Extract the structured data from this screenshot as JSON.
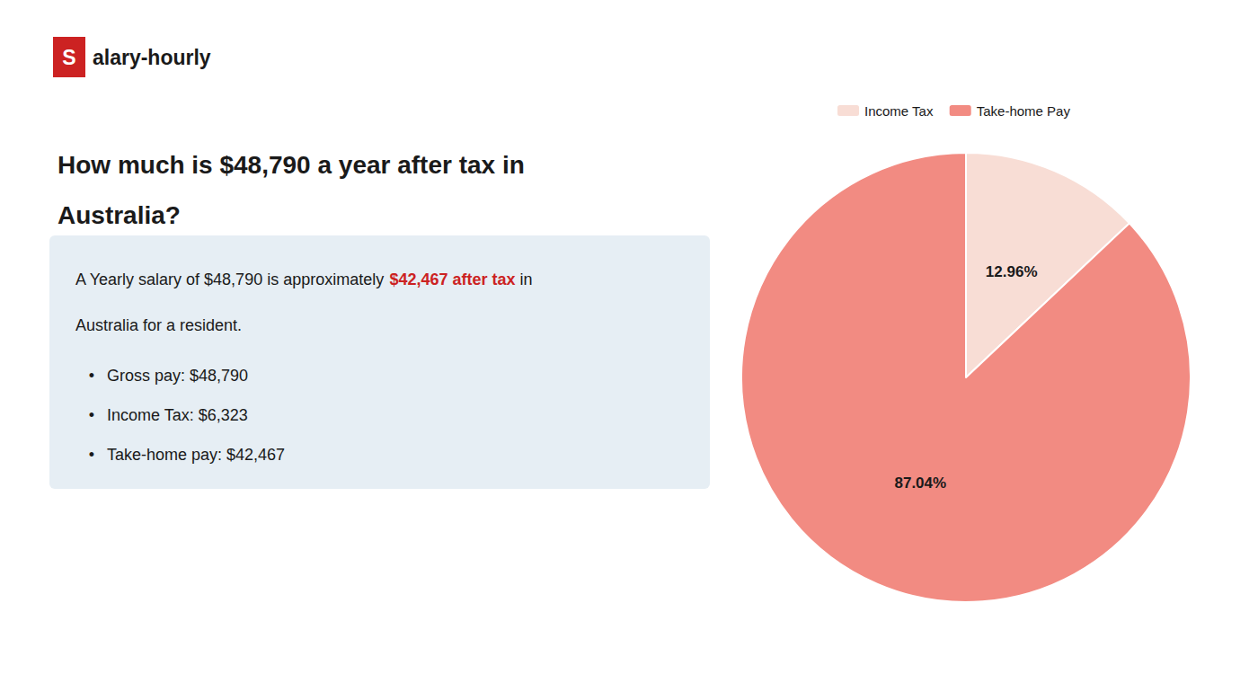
{
  "chart_data": {
    "type": "pie",
    "title": "How much is $48,790 a year after tax in\nAustralia?",
    "categories": [
      "Income Tax",
      "Take-home Pay"
    ],
    "values": [
      12.96,
      87.04
    ],
    "value_labels": [
      "12.96%",
      "87.04%"
    ],
    "colors": [
      "#f8ddd5",
      "#f28b82"
    ],
    "data_labels": true,
    "legend": "top",
    "annotations": [
      {
        "text": "S",
        "color": "#cc2222"
      },
      {
        "text": "alary-hourly"
      },
      {
        "text": "A Yearly salary of $48,790 is approximately "
      },
      {
        "text": "$42,467 after tax",
        "color": "#cc2222"
      },
      {
        "text": " in"
      },
      {
        "text": "Australia for a resident."
      },
      {
        "text": "•"
      },
      {
        "text": "Gross pay: $48,790"
      },
      {
        "text": "•"
      },
      {
        "text": "Income Tax: $6,323"
      },
      {
        "text": "•"
      },
      {
        "text": "Take-home pay: $42,467"
      }
    ]
  }
}
